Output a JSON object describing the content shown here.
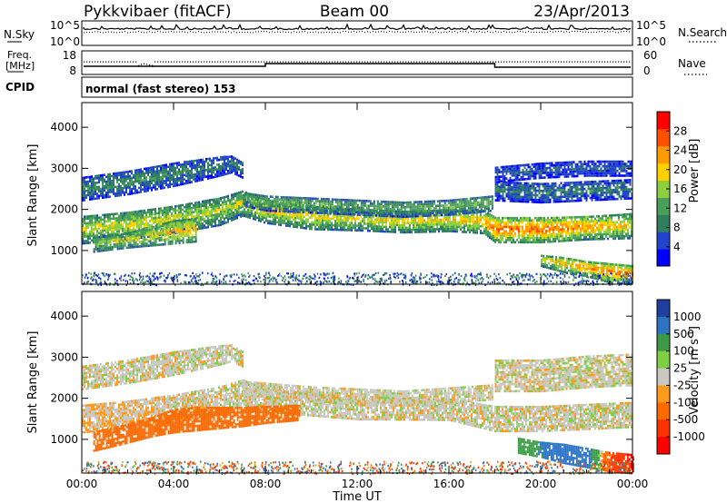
{
  "header": {
    "station": "Pykkvibaer (fitACF)",
    "beam": "Beam 00",
    "date": "23/Apr/2013"
  },
  "nsky_panel": {
    "left_label": "N.Sky",
    "right_label": "N.Search",
    "left_ticks": [
      "10^5",
      "10^0"
    ],
    "right_ticks": [
      "10^5",
      "10^0"
    ]
  },
  "freq_panel": {
    "left_label_1": "Freq.",
    "left_label_2": "[MHz]",
    "right_label": "Nave",
    "left_ticks": [
      "18",
      "8"
    ],
    "right_ticks": [
      "60",
      "0"
    ]
  },
  "cpid_panel": {
    "label": "CPID",
    "text": "normal (fast stereo) 153"
  },
  "colors": {
    "power_scale": [
      "#0000ff",
      "#2244cc",
      "#2f7f5f",
      "#4aa05a",
      "#8cd040",
      "#ffd000",
      "#ff9a00",
      "#ff5000",
      "#ff0000"
    ],
    "velocity_scale": [
      "#1f3fa0",
      "#2d73c2",
      "#3c9a47",
      "#7fcf43",
      "#c8c8c0",
      "#ff9a1a",
      "#ff6a00",
      "#ff3300",
      "#ff0000"
    ]
  },
  "chart_data": [
    {
      "type": "heatmap",
      "name": "power",
      "xlabel": "",
      "ylabel": "Slant Range [km]",
      "x_ticks": [
        "00:00",
        "04:00",
        "08:00",
        "12:00",
        "16:00",
        "20:00",
        "00:00"
      ],
      "xlim_hours": [
        0,
        24
      ],
      "y_ticks": [
        1000,
        2000,
        3000,
        4000
      ],
      "ylim": [
        180,
        4600
      ],
      "colorbar": {
        "label": "Power [dB]",
        "ticks": [
          4,
          8,
          12,
          16,
          20,
          24,
          28
        ],
        "range": [
          0,
          32
        ]
      },
      "bands": [
        {
          "x": [
            0.0,
            2.0,
            4.0,
            6.0,
            7.0,
            8.0,
            10.0,
            12.0,
            14.0,
            16.0,
            17.5,
            18.0,
            20.0,
            22.0,
            24.0
          ],
          "y": [
            1550,
            1650,
            1800,
            2000,
            2200,
            2000,
            1850,
            1800,
            1750,
            1780,
            1750,
            1550,
            1550,
            1600,
            1650
          ],
          "width": [
            350,
            350,
            350,
            350,
            320,
            300,
            300,
            280,
            280,
            280,
            300,
            320,
            320,
            300,
            320
          ],
          "power": [
            18,
            19,
            18,
            17,
            18,
            20,
            20,
            19,
            20,
            20,
            22,
            26,
            26,
            24,
            20
          ],
          "noise": 0.42
        },
        {
          "x": [
            0.0,
            2.0,
            4.0,
            6.0,
            6.5,
            7.0
          ],
          "y": [
            2550,
            2700,
            2900,
            3100,
            3150,
            3000
          ],
          "width": [
            300,
            300,
            300,
            250,
            220,
            200
          ],
          "power": [
            10,
            11,
            10,
            9,
            9,
            9
          ],
          "noise": 0.55
        },
        {
          "x": [
            7.0,
            8.0,
            10.0,
            12.0,
            14.0,
            16.0,
            17.9
          ],
          "y": [
            2300,
            2200,
            2150,
            2100,
            2050,
            2100,
            2200
          ],
          "width": [
            180,
            200,
            200,
            200,
            200,
            200,
            200
          ],
          "power": [
            13,
            14,
            14,
            13,
            13,
            14,
            14
          ],
          "noise": 0.5
        },
        {
          "x": [
            0.5,
            2.0,
            3.0,
            4.0,
            5.0
          ],
          "y": [
            1200,
            1300,
            1400,
            1500,
            1550
          ],
          "width": [
            200,
            200,
            250,
            300,
            300
          ],
          "power": [
            16,
            18,
            19,
            22,
            22
          ],
          "noise": 0.6
        },
        {
          "x": [
            18.0,
            20.0,
            22.0,
            24.0
          ],
          "y": [
            2500,
            2450,
            2500,
            2550
          ],
          "width": [
            250,
            250,
            250,
            250
          ],
          "power": [
            9,
            9,
            9,
            9
          ],
          "noise": 0.5
        },
        {
          "x": [
            18.0,
            20.0,
            22.0,
            24.0
          ],
          "y": [
            2900,
            3000,
            3050,
            3050
          ],
          "width": [
            200,
            200,
            200,
            200
          ],
          "power": [
            7,
            7,
            7,
            7
          ],
          "noise": 0.55
        },
        {
          "x": [
            20.0,
            21.0,
            22.0,
            23.0,
            24.0
          ],
          "y": [
            800,
            700,
            600,
            500,
            450
          ],
          "width": [
            150,
            200,
            200,
            250,
            250
          ],
          "power": [
            20,
            22,
            24,
            26,
            26
          ],
          "noise": 0.4
        }
      ]
    },
    {
      "type": "heatmap",
      "name": "velocity",
      "xlabel": "Time UT",
      "ylabel": "Slant Range [km]",
      "x_ticks": [
        "00:00",
        "04:00",
        "08:00",
        "12:00",
        "16:00",
        "20:00",
        "00:00"
      ],
      "xlim_hours": [
        0,
        24
      ],
      "y_ticks": [
        1000,
        2000,
        3000,
        4000
      ],
      "ylim": [
        180,
        4600
      ],
      "colorbar": {
        "label": "Velocity [m s^-1]",
        "tick_labels": [
          "1000",
          "500",
          "100",
          "25",
          "-25",
          "-100",
          "-500",
          "-1000"
        ]
      },
      "bands": [
        {
          "x": [
            0.0,
            2.0,
            4.0,
            6.0,
            7.0,
            8.0,
            12.0,
            16.0,
            18.0,
            20.0,
            24.0
          ],
          "y": [
            1550,
            1650,
            1800,
            2000,
            2200,
            2000,
            1800,
            1780,
            1550,
            1550,
            1650
          ],
          "width": [
            350,
            350,
            350,
            350,
            320,
            300,
            280,
            280,
            320,
            320,
            320
          ],
          "velocity": [
            -20,
            -20,
            -10,
            0,
            0,
            0,
            0,
            0,
            0,
            0,
            0
          ]
        },
        {
          "x": [
            0.5,
            2.0,
            3.0,
            4.0,
            5.0,
            7.0,
            8.0,
            9.5
          ],
          "y": [
            1000,
            1200,
            1350,
            1500,
            1550,
            1600,
            1650,
            1700
          ],
          "width": [
            250,
            250,
            250,
            300,
            300,
            250,
            220,
            200
          ],
          "velocity": [
            -200,
            -250,
            -250,
            -250,
            -200,
            -150,
            -200,
            -200
          ]
        },
        {
          "x": [
            0.0,
            2.0,
            4.0,
            6.0,
            6.5,
            7.0
          ],
          "y": [
            2550,
            2700,
            2900,
            3100,
            3150,
            3000
          ],
          "width": [
            300,
            300,
            300,
            250,
            220,
            200
          ],
          "velocity": [
            0,
            0,
            0,
            0,
            0,
            0
          ]
        },
        {
          "x": [
            7.0,
            10.0,
            14.0,
            17.9
          ],
          "y": [
            2300,
            2150,
            2050,
            2200
          ],
          "width": [
            180,
            200,
            200,
            200
          ],
          "velocity": [
            0,
            0,
            0,
            0
          ]
        },
        {
          "x": [
            18.0,
            20.0,
            22.0,
            24.0
          ],
          "y": [
            2600,
            2600,
            2700,
            2750
          ],
          "width": [
            400,
            400,
            400,
            400
          ],
          "velocity": [
            0,
            0,
            0,
            0
          ]
        },
        {
          "x": [
            19.0,
            20.0,
            21.0,
            22.0,
            23.0,
            24.0
          ],
          "y": [
            900,
            800,
            700,
            600,
            500,
            450
          ],
          "width": [
            200,
            200,
            250,
            250,
            250,
            250
          ],
          "velocity": [
            150,
            300,
            600,
            400,
            -300,
            -800
          ]
        }
      ]
    }
  ]
}
